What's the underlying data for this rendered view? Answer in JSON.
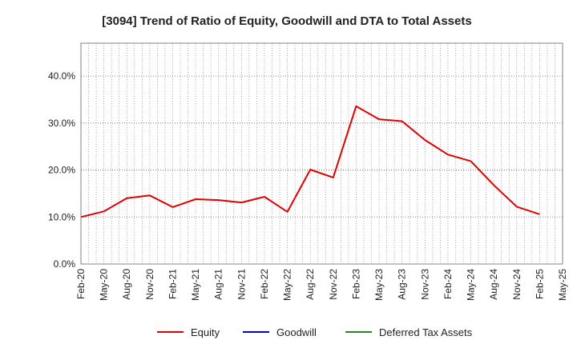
{
  "chart_data": {
    "type": "line",
    "title": "[3094]  Trend of Ratio of Equity, Goodwill and DTA to Total Assets",
    "xlabel": "",
    "ylabel": "",
    "x_ticks": [
      "Feb-20",
      "May-20",
      "Aug-20",
      "Nov-20",
      "Feb-21",
      "May-21",
      "Aug-21",
      "Nov-21",
      "Feb-22",
      "May-22",
      "Aug-22",
      "Nov-22",
      "Feb-23",
      "May-23",
      "Aug-23",
      "Nov-23",
      "Feb-24",
      "May-24",
      "Aug-24",
      "Nov-24",
      "Feb-25",
      "May-25"
    ],
    "y_ticks": [
      "0.0%",
      "10.0%",
      "20.0%",
      "30.0%",
      "40.0%"
    ],
    "ylim": [
      0,
      47
    ],
    "grid": true,
    "legend_position": "bottom",
    "series": [
      {
        "name": "Equity",
        "color": "#e00000",
        "values": [
          10.0,
          11.2,
          14.0,
          14.6,
          12.1,
          13.8,
          13.6,
          13.1,
          14.3,
          11.1,
          20.1,
          18.4,
          33.6,
          30.8,
          30.4,
          26.4,
          23.3,
          21.9,
          16.8,
          12.2,
          10.6
        ]
      },
      {
        "name": "Goodwill",
        "color": "#0000cc",
        "values": []
      },
      {
        "name": "Deferred Tax Assets",
        "color": "#228b22",
        "values": []
      }
    ]
  }
}
